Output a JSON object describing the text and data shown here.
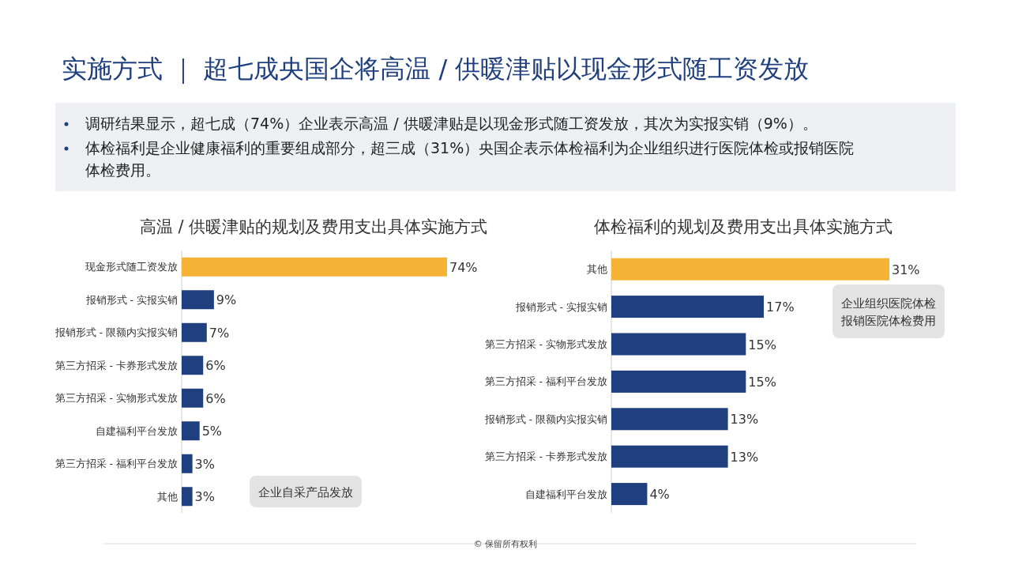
{
  "chart_data": [
    {
      "type": "other",
      "title": "实施方式 ｜ 超七成央国企将高温 / 供暖津贴以现金形式随工资发放",
      "annotations": [
        "调研结果显示，超七成（74%）企业表示高温 / 供暖津贴是以现金形式随工资发放，其次为实报实销（9%）。",
        "体检福利是企业健康福利的重要组成部分，超三成（31%）央国企表示体检福利为企业组织进行医院体检或报销医院体检费用。",
        "© 保留所有权利"
      ]
    },
    {
      "type": "bar",
      "orientation": "horizontal",
      "title": "高温 / 供暖津贴的规划及费用支出具体实施方式",
      "categories": [
        "现金形式随工资发放",
        "报销形式 - 实报实销",
        "报销形式 - 限额内实报实销",
        "第三方招采 - 卡券形式发放",
        "第三方招采 - 实物形式发放",
        "自建福利平台发放",
        "第三方招采 - 福利平台发放",
        "其他"
      ],
      "values": [
        74,
        9,
        7,
        6,
        6,
        5,
        3,
        3
      ],
      "value_labels": [
        "74%",
        "9%",
        "7%",
        "6%",
        "6%",
        "5%",
        "3%",
        "3%"
      ],
      "colors": [
        "#f5b335",
        "#1f3f7f",
        "#1f3f7f",
        "#1f3f7f",
        "#1f3f7f",
        "#1f3f7f",
        "#1f3f7f",
        "#1f3f7f"
      ],
      "annotations": [
        "企业自采产品发放"
      ]
    },
    {
      "type": "bar",
      "orientation": "horizontal",
      "title": "体检福利的规划及费用支出具体实施方式",
      "categories": [
        "其他",
        "报销形式 - 实报实销",
        "第三方招采 - 实物形式发放",
        "第三方招采 - 福利平台发放",
        "报销形式 - 限额内实报实销",
        "第三方招采 - 卡券形式发放",
        "自建福利平台发放"
      ],
      "values": [
        31,
        17,
        15,
        15,
        13,
        13,
        4
      ],
      "value_labels": [
        "31%",
        "17%",
        "15%",
        "15%",
        "13%",
        "13%",
        "4%"
      ],
      "colors": [
        "#f5b335",
        "#1f3f7f",
        "#1f3f7f",
        "#1f3f7f",
        "#1f3f7f",
        "#1f3f7f",
        "#1f3f7f"
      ],
      "annotations": [
        "企业组织医院体检报销医院体检费用"
      ]
    }
  ]
}
